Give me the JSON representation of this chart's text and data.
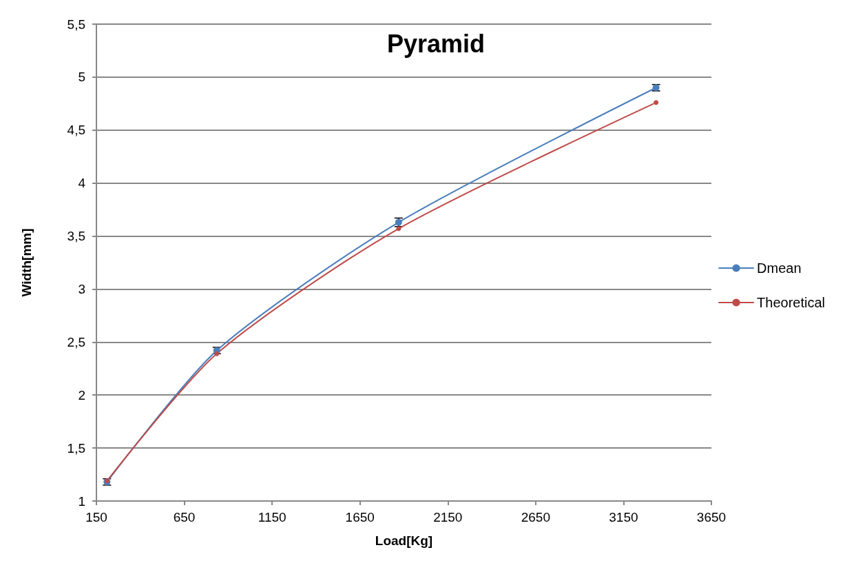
{
  "chart_data": {
    "type": "line",
    "title": "Pyramid",
    "xlabel": "Load[Kg]",
    "ylabel": "Width[mm]",
    "xlim": [
      150,
      3650
    ],
    "xticks": [
      150,
      650,
      1150,
      1650,
      2150,
      2650,
      3150,
      3650
    ],
    "ylim": [
      1,
      5.5
    ],
    "yticks": [
      1,
      {
        "value": 1.5,
        "label": "1,5"
      },
      2,
      {
        "value": 2.5,
        "label": "2,5"
      },
      3,
      {
        "value": 3.5,
        "label": "3,5"
      },
      4,
      {
        "value": 4.5,
        "label": "4,5"
      },
      5,
      {
        "value": 5.5,
        "label": "5,5"
      }
    ],
    "grid": "y",
    "legend": "right",
    "marker": "circle",
    "line_style": "solid",
    "series": [
      {
        "name": "Dmean",
        "color": "#4a7ebb",
        "x": [
          210,
          835,
          1870,
          3335
        ],
        "values": [
          1.18,
          2.42,
          3.63,
          4.9
        ],
        "errors": [
          0.03,
          0.03,
          0.04,
          0.03
        ]
      },
      {
        "name": "Theoretical",
        "color": "#be4b48",
        "x": [
          210,
          835,
          1870,
          3335
        ],
        "values": [
          1.19,
          2.39,
          3.57,
          4.76
        ]
      }
    ]
  }
}
